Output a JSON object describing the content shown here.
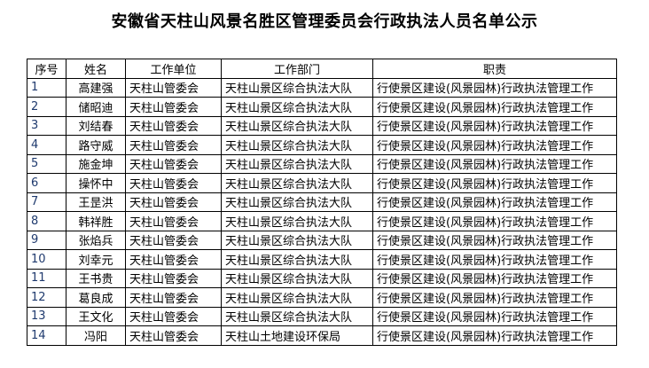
{
  "title": "安徽省天柱山风景名胜区管理委员会行政执法人员名单公示",
  "headers": [
    "序号",
    "姓名",
    "工作单位",
    "工作部门",
    "职责"
  ],
  "rows": [
    [
      "1",
      "高建强",
      "天柱山管委会",
      "天柱山景区综合执法大队",
      "行使景区建设(风景园林)行政执法管理工作"
    ],
    [
      "2",
      "储昭迪",
      "天柱山管委会",
      "天柱山景区综合执法大队",
      "行使景区建设(风景园林)行政执法管理工作"
    ],
    [
      "3",
      "刘结春",
      "天柱山管委会",
      "天柱山景区综合执法大队",
      "行使景区建设(风景园林)行政执法管理工作"
    ],
    [
      "4",
      "路守威",
      "天柱山管委会",
      "天柱山景区综合执法大队",
      "行使景区建设(风景园林)行政执法管理工作"
    ],
    [
      "5",
      "施金坤",
      "天柱山管委会",
      "天柱山景区综合执法大队",
      "行使景区建设(风景园林)行政执法管理工作"
    ],
    [
      "6",
      "操怀中",
      "天柱山管委会",
      "天柱山景区综合执法大队",
      "行使景区建设(风景园林)行政执法管理工作"
    ],
    [
      "7",
      "王昰洪",
      "天柱山管委会",
      "天柱山景区综合执法大队",
      "行使景区建设(风景园林)行政执法管理工作"
    ],
    [
      "8",
      "韩祥胜",
      "天柱山管委会",
      "天柱山景区综合执法大队",
      "行使景区建设(风景园林)行政执法管理工作"
    ],
    [
      "9",
      "张焰兵",
      "天柱山管委会",
      "天柱山景区综合执法大队",
      "行使景区建设(风景园林)行政执法管理工作"
    ],
    [
      "10",
      "刘幸元",
      "天柱山管委会",
      "天柱山景区综合执法大队",
      "行使景区建设(风景园林)行政执法管理工作"
    ],
    [
      "11",
      "王书贵",
      "天柱山管委会",
      "天柱山景区综合执法大队",
      "行使景区建设(风景园林)行政执法管理工作"
    ],
    [
      "12",
      "葛良成",
      "天柱山管委会",
      "天柱山景区综合执法大队",
      "行使景区建设(风景园林)行政执法管理工作"
    ],
    [
      "13",
      "王文化",
      "天柱山管委会",
      "天柱山景区综合执法大队",
      "行使景区建设(风景园林)行政执法管理工作"
    ],
    [
      "14",
      "冯阳",
      "天柱山管委会",
      "天柱山土地建设环保局",
      "行使景区建设(风景园林)行政执法管理工作"
    ]
  ]
}
